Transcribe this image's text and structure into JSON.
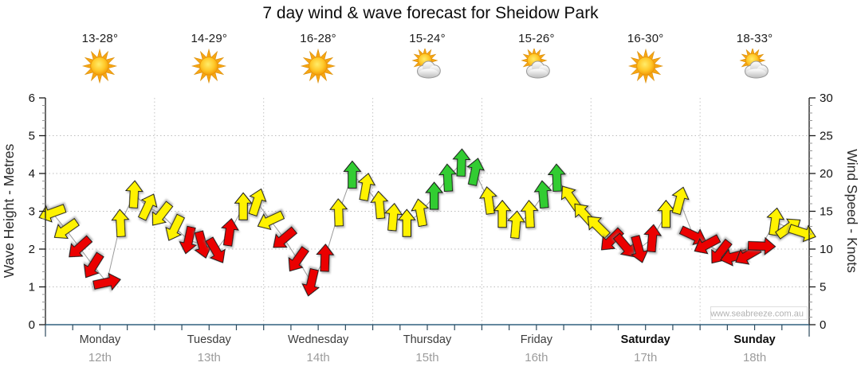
{
  "title": "7 day wind & wave forecast for Sheidow Park",
  "header": {
    "days": [
      {
        "temp": "13-28°",
        "icon": "sunny"
      },
      {
        "temp": "14-29°",
        "icon": "sunny"
      },
      {
        "temp": "16-28°",
        "icon": "sunny"
      },
      {
        "temp": "15-24°",
        "icon": "partly-cloudy"
      },
      {
        "temp": "15-26°",
        "icon": "partly-cloudy"
      },
      {
        "temp": "16-30°",
        "icon": "sunny"
      },
      {
        "temp": "18-33°",
        "icon": "partly-cloudy"
      }
    ]
  },
  "chart_data": {
    "type": "wind-arrows",
    "title": "7 day wind & wave forecast for Sheidow Park",
    "left_axis": {
      "label": "Wave Height - Metres",
      "min": 0,
      "max": 6,
      "major_step": 1,
      "minor_knot_spacing": true
    },
    "right_axis": {
      "label": "Wind Speed - Knots",
      "min": 0,
      "max": 30,
      "major_step": 5,
      "minor_step": 1
    },
    "grid": {
      "horizontal_at_metres": [
        1,
        2,
        3,
        4,
        5
      ],
      "vertical_at_day_boundaries": true
    },
    "x_axis": {
      "days": [
        {
          "name": "Monday",
          "date": "12th",
          "weekend": false
        },
        {
          "name": "Tuesday",
          "date": "13th",
          "weekend": false
        },
        {
          "name": "Wednesday",
          "date": "14th",
          "weekend": false
        },
        {
          "name": "Thursday",
          "date": "15th",
          "weekend": false
        },
        {
          "name": "Friday",
          "date": "16th",
          "weekend": false
        },
        {
          "name": "Saturday",
          "date": "17th",
          "weekend": true
        },
        {
          "name": "Sunday",
          "date": "18th",
          "weekend": true
        }
      ]
    },
    "arrows_per_day": 8,
    "speed_colors": {
      "red": "#EB0000",
      "yellow": "#FFF200",
      "green": "#33CC33"
    },
    "arrows": [
      {
        "knots": 14.8,
        "rot": 250,
        "level": "yellow"
      },
      {
        "knots": 12.6,
        "rot": 235,
        "level": "yellow"
      },
      {
        "knots": 10.2,
        "rot": 228,
        "level": "red"
      },
      {
        "knots": 7.8,
        "rot": 212,
        "level": "red"
      },
      {
        "knots": 5.6,
        "rot": 78,
        "level": "red"
      },
      {
        "knots": 13.4,
        "rot": 357,
        "level": "yellow"
      },
      {
        "knots": 17.2,
        "rot": 3,
        "level": "yellow"
      },
      {
        "knots": 15.6,
        "rot": 25,
        "level": "yellow"
      },
      {
        "knots": 14.6,
        "rot": 218,
        "level": "yellow"
      },
      {
        "knots": 12.8,
        "rot": 206,
        "level": "yellow"
      },
      {
        "knots": 11.2,
        "rot": 192,
        "level": "red"
      },
      {
        "knots": 10.6,
        "rot": 165,
        "level": "red"
      },
      {
        "knots": 9.8,
        "rot": 150,
        "level": "red"
      },
      {
        "knots": 12.2,
        "rot": 8,
        "level": "red"
      },
      {
        "knots": 15.6,
        "rot": 0,
        "level": "yellow"
      },
      {
        "knots": 16.2,
        "rot": 18,
        "level": "yellow"
      },
      {
        "knots": 13.8,
        "rot": 245,
        "level": "yellow"
      },
      {
        "knots": 11.4,
        "rot": 230,
        "level": "red"
      },
      {
        "knots": 8.6,
        "rot": 215,
        "level": "red"
      },
      {
        "knots": 5.6,
        "rot": 193,
        "level": "red"
      },
      {
        "knots": 8.8,
        "rot": 2,
        "level": "red"
      },
      {
        "knots": 14.8,
        "rot": 358,
        "level": "yellow"
      },
      {
        "knots": 19.8,
        "rot": 0,
        "level": "green"
      },
      {
        "knots": 18.2,
        "rot": 10,
        "level": "yellow"
      },
      {
        "knots": 15.8,
        "rot": 355,
        "level": "yellow"
      },
      {
        "knots": 14.2,
        "rot": 5,
        "level": "yellow"
      },
      {
        "knots": 13.4,
        "rot": 0,
        "level": "yellow"
      },
      {
        "knots": 14.8,
        "rot": 350,
        "level": "yellow"
      },
      {
        "knots": 17.0,
        "rot": 0,
        "level": "green"
      },
      {
        "knots": 19.4,
        "rot": 357,
        "level": "green"
      },
      {
        "knots": 21.4,
        "rot": 2,
        "level": "green"
      },
      {
        "knots": 20.2,
        "rot": 12,
        "level": "green"
      },
      {
        "knots": 16.4,
        "rot": 352,
        "level": "yellow"
      },
      {
        "knots": 14.6,
        "rot": 0,
        "level": "yellow"
      },
      {
        "knots": 13.2,
        "rot": 5,
        "level": "yellow"
      },
      {
        "knots": 14.6,
        "rot": 357,
        "level": "yellow"
      },
      {
        "knots": 17.2,
        "rot": 355,
        "level": "green"
      },
      {
        "knots": 19.4,
        "rot": 358,
        "level": "green"
      },
      {
        "knots": 16.8,
        "rot": 325,
        "level": "yellow"
      },
      {
        "knots": 14.6,
        "rot": 318,
        "level": "yellow"
      },
      {
        "knots": 13.0,
        "rot": 315,
        "level": "yellow"
      },
      {
        "knots": 11.2,
        "rot": 225,
        "level": "red"
      },
      {
        "knots": 10.4,
        "rot": 140,
        "level": "red"
      },
      {
        "knots": 10.0,
        "rot": 165,
        "level": "red"
      },
      {
        "knots": 11.4,
        "rot": 5,
        "level": "red"
      },
      {
        "knots": 14.6,
        "rot": 0,
        "level": "yellow"
      },
      {
        "knots": 16.4,
        "rot": 15,
        "level": "yellow"
      },
      {
        "knots": 11.8,
        "rot": 115,
        "level": "red"
      },
      {
        "knots": 10.6,
        "rot": 242,
        "level": "red"
      },
      {
        "knots": 9.6,
        "rot": 218,
        "level": "red"
      },
      {
        "knots": 9.0,
        "rot": 256,
        "level": "red"
      },
      {
        "knots": 9.2,
        "rot": 240,
        "level": "red"
      },
      {
        "knots": 10.4,
        "rot": 92,
        "level": "red"
      },
      {
        "knots": 13.6,
        "rot": 8,
        "level": "yellow"
      },
      {
        "knots": 12.8,
        "rot": 55,
        "level": "yellow"
      },
      {
        "knots": 12.2,
        "rot": 108,
        "level": "yellow"
      }
    ],
    "watermark": "www.seabreeze.com.au"
  }
}
